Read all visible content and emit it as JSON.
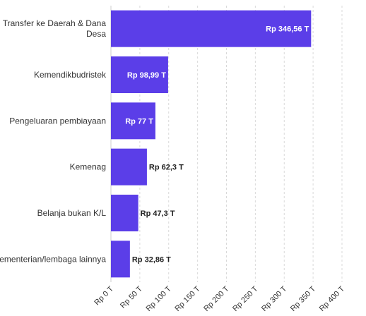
{
  "chart_data": {
    "type": "bar",
    "orientation": "horizontal",
    "categories": [
      [
        "Transfer ke Daerah & Dana",
        "Desa"
      ],
      [
        "Kemendikbudristek"
      ],
      [
        "Pengeluaran pembiayaan"
      ],
      [
        "Kemenag"
      ],
      [
        "Belanja bukan K/L"
      ],
      [
        "Kementerian/lembaga lainnya"
      ]
    ],
    "values": [
      346.56,
      98.99,
      77,
      62.3,
      47.3,
      32.86
    ],
    "value_labels": [
      "Rp 346,56 T",
      "Rp 98,99 T",
      "Rp 77 T",
      "Rp 62,3 T",
      "Rp 47,3 T",
      "Rp 32,86 T"
    ],
    "xlim": [
      0,
      400
    ],
    "x_ticks": [
      0,
      50,
      100,
      150,
      200,
      250,
      300,
      350,
      400
    ],
    "x_tick_labels": [
      "Rp 0 T",
      "Rp 50 T",
      "Rp 100 T",
      "Rp 150 T",
      "Rp 200 T",
      "Rp 250 T",
      "Rp 300 T",
      "Rp 350 T",
      "Rp 400 T"
    ],
    "bar_color": "#5b3ee8",
    "grid": true
  }
}
